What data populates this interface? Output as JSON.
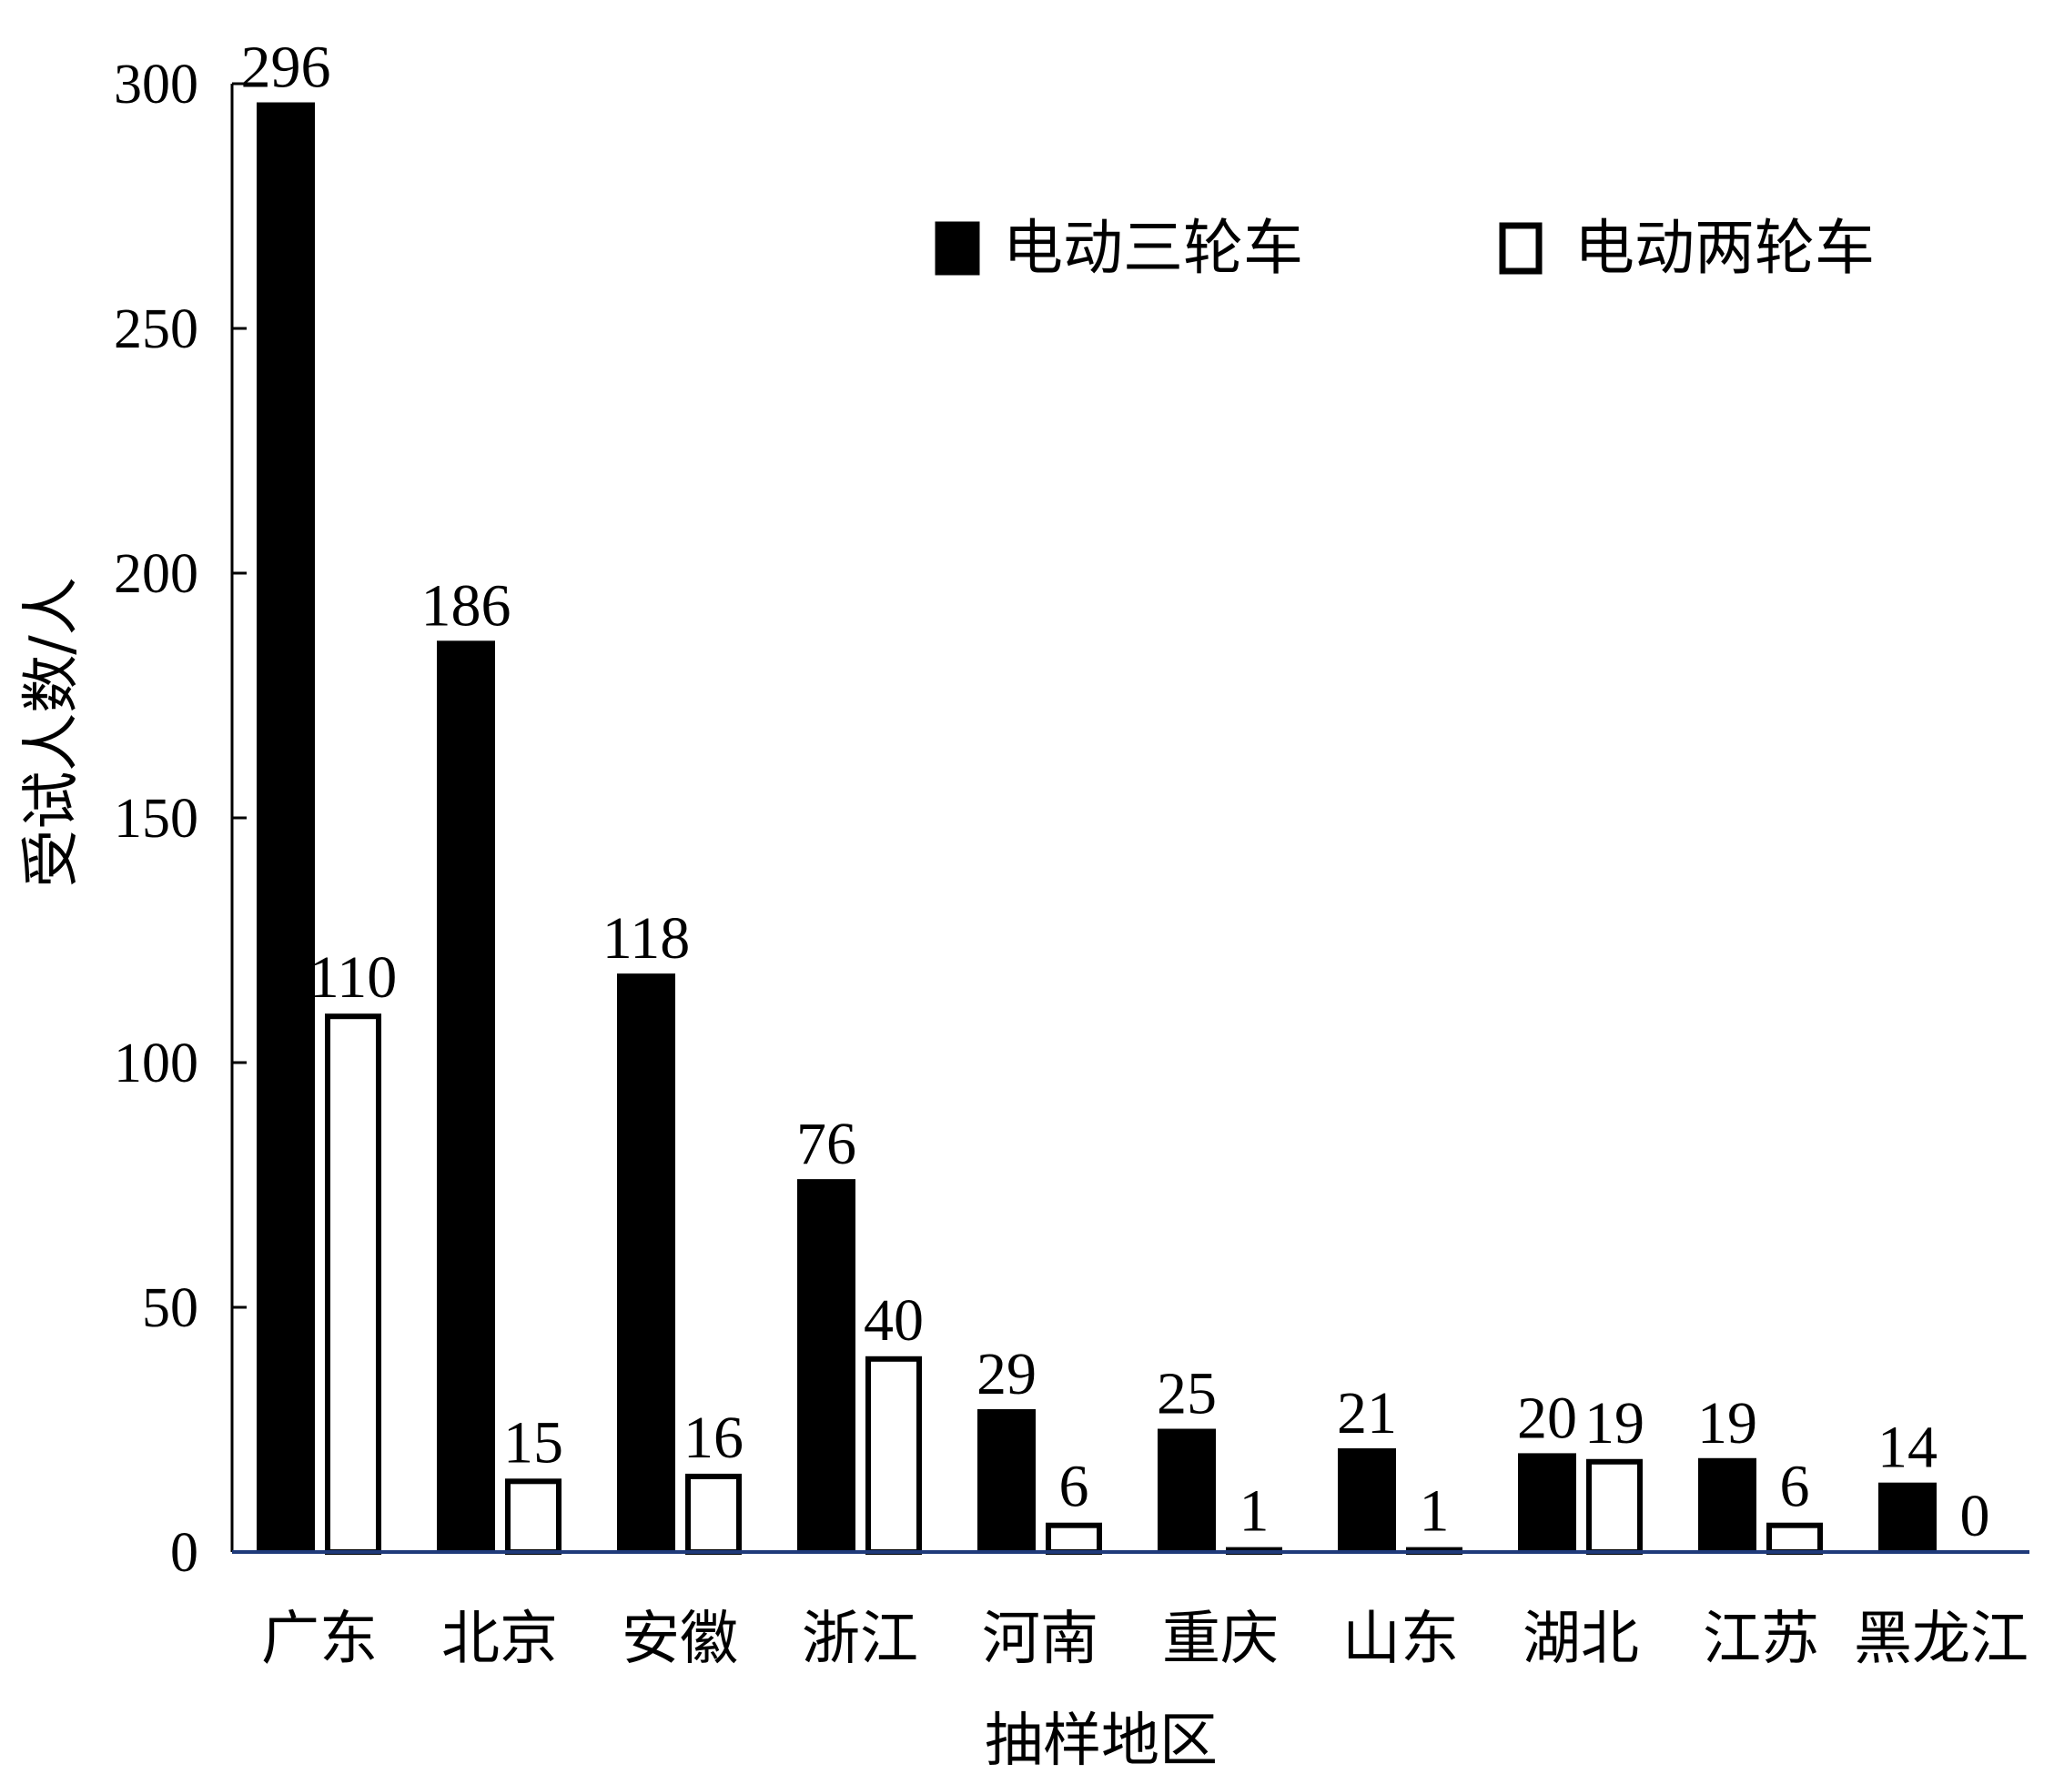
{
  "chart_data": {
    "type": "bar",
    "title": "",
    "xlabel": "抽样地区",
    "ylabel": "受试人数/人",
    "ylim": [
      0,
      300
    ],
    "yticks": [
      0,
      50,
      100,
      150,
      200,
      250,
      300
    ],
    "categories": [
      "广东",
      "北京",
      "安徽",
      "浙江",
      "河南",
      "重庆",
      "山东",
      "湖北",
      "江苏",
      "黑龙江"
    ],
    "series": [
      {
        "name": "电动三轮车",
        "color": "#000000",
        "values": [
          296,
          186,
          118,
          76,
          29,
          25,
          21,
          20,
          19,
          14
        ]
      },
      {
        "name": "电动两轮车",
        "color": "#ffffff",
        "values": [
          110,
          15,
          16,
          40,
          6,
          1,
          1,
          19,
          6,
          0
        ]
      }
    ],
    "legend_position": "top-right",
    "grid": false,
    "baseline_color": "#1f3a7a"
  }
}
